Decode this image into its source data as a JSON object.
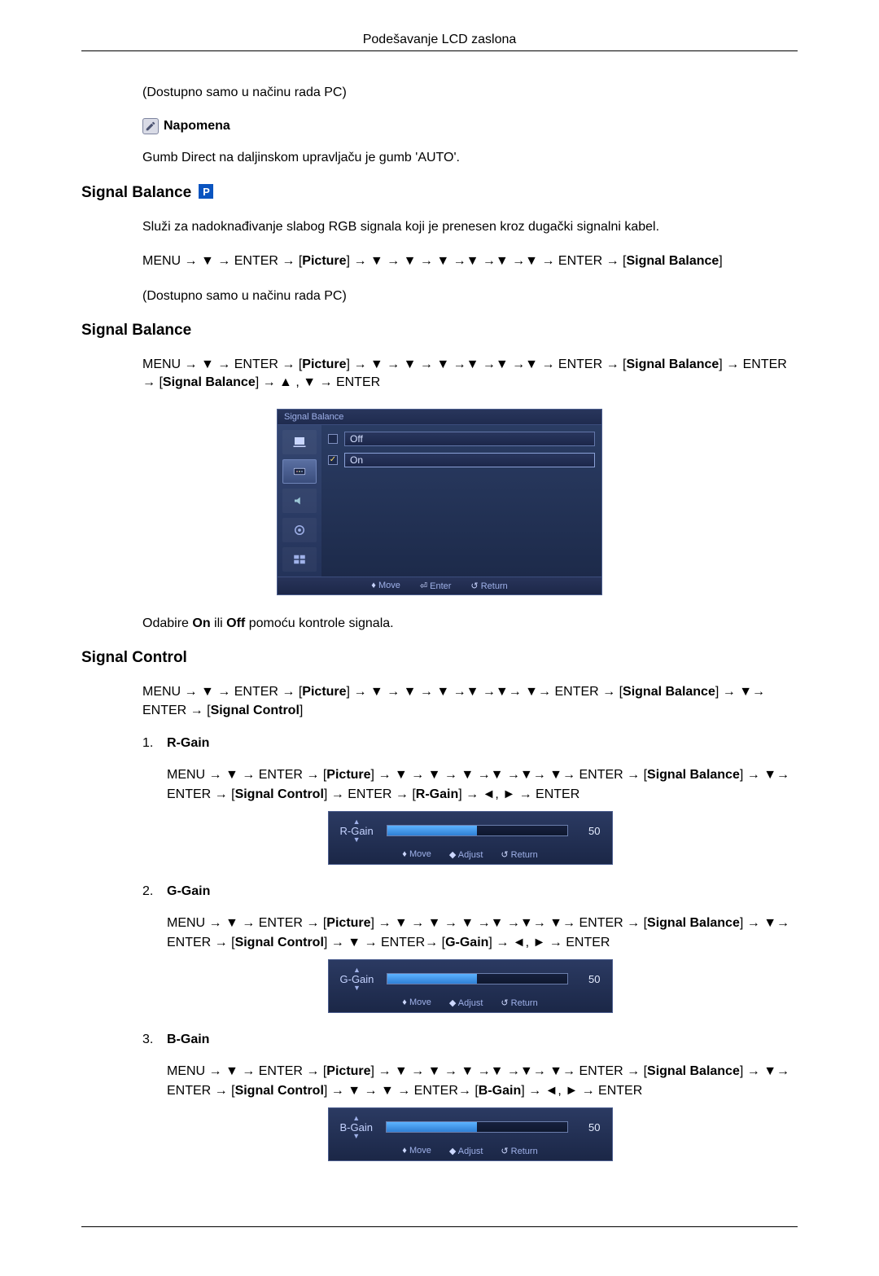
{
  "header": {
    "title": "Podešavanje LCD zaslona"
  },
  "intro": {
    "pc_only": "(Dostupno samo u načinu rada PC)",
    "note_label": "Napomena",
    "note_body": "Gumb Direct na daljinskom upravljaču je gumb 'AUTO'."
  },
  "sec_signal_balance_p": {
    "heading": "Signal Balance",
    "desc": "Služi za nadoknađivanje slabog RGB signala koji je prenesen kroz dugački signalni kabel.",
    "path_pre": "MENU → ▼ → ENTER → [",
    "path_picture": "Picture",
    "path_mid": "] → ▼ → ▼ → ▼ →▼ →▼ →▼ → ENTER → [",
    "path_sb": "Signal Balance",
    "path_end": "]"
  },
  "sec_signal_balance": {
    "heading": "Signal Balance",
    "path_line1_pre": "MENU → ▼ → ENTER → [",
    "path_line1_pic": "Picture",
    "path_line1_mid": "] → ▼ → ▼ → ▼ →▼ →▼ →▼ → ENTER → [",
    "path_line1_sb1": "Signal Balance",
    "path_line1_mid2": "] → ENTER → [",
    "path_line1_sb2": "Signal Balance",
    "path_line1_end": "] → ▲ , ▼ → ENTER",
    "selects_pre": "Odabire ",
    "on": "On",
    "or": " ili ",
    "off": "Off",
    "selects_post": " pomoću kontrole signala."
  },
  "osd_balance": {
    "title": "Signal Balance",
    "off": "Off",
    "on": "On",
    "footer_move": "Move",
    "footer_enter": "Enter",
    "footer_return": "Return",
    "colors": {
      "bg_top": "#2c3e66",
      "bg_bottom": "#1b2847",
      "accent": "#6377aa",
      "text": "#c5d3ff"
    }
  },
  "sec_signal_control": {
    "heading": "Signal Control",
    "path_pre": "MENU → ▼ → ENTER → [",
    "path_pic": "Picture",
    "path_mid": "] → ▼ → ▼ → ▼ →▼ →▼→ ▼→ ENTER → [",
    "path_sb": "Signal Balance",
    "path_mid2": "] → ▼→ ENTER → [",
    "path_sc": "Signal Control",
    "path_end": "]",
    "items": [
      {
        "num": "1.",
        "label": "R-Gain",
        "path_pre": "MENU → ▼ → ENTER → [",
        "pic": "Picture",
        "mid1": "] → ▼ → ▼ → ▼ →▼ →▼→ ▼→ ENTER → [",
        "sb": "Signal Balance",
        "mid2": "] → ▼→ ENTER → [",
        "sc": "Signal Control",
        "mid3": "] → ENTER → [",
        "g": "R-Gain",
        "end": "] → ◄, ► → ENTER",
        "slider_label": "R-Gain",
        "value": 50
      },
      {
        "num": "2.",
        "label": "G-Gain",
        "path_pre": "MENU → ▼ → ENTER → [",
        "pic": "Picture",
        "mid1": "] → ▼ → ▼ → ▼ →▼ →▼→ ▼→ ENTER → [",
        "sb": "Signal Balance",
        "mid2": "] → ▼→ ENTER → [",
        "sc": "Signal Control",
        "mid3": "] → ▼ → ENTER→ [",
        "g": "G-Gain",
        "end": "] → ◄, ► → ENTER",
        "slider_label": "G-Gain",
        "value": 50
      },
      {
        "num": "3.",
        "label": "B-Gain",
        "path_pre": "MENU → ▼ → ENTER → [",
        "pic": "Picture",
        "mid1": "] → ▼ → ▼ → ▼ →▼ →▼→ ▼→ ENTER → [",
        "sb": "Signal Balance",
        "mid2": "] → ▼→ ENTER → [",
        "sc": "Signal Control",
        "mid3": "] → ▼ → ▼ → ENTER→ [",
        "g": "B-Gain",
        "end": "] → ◄, ► → ENTER",
        "slider_label": "B-Gain",
        "value": 50
      }
    ],
    "slider_footer": {
      "move": "Move",
      "adjust": "Adjust",
      "ret": "Return"
    }
  }
}
